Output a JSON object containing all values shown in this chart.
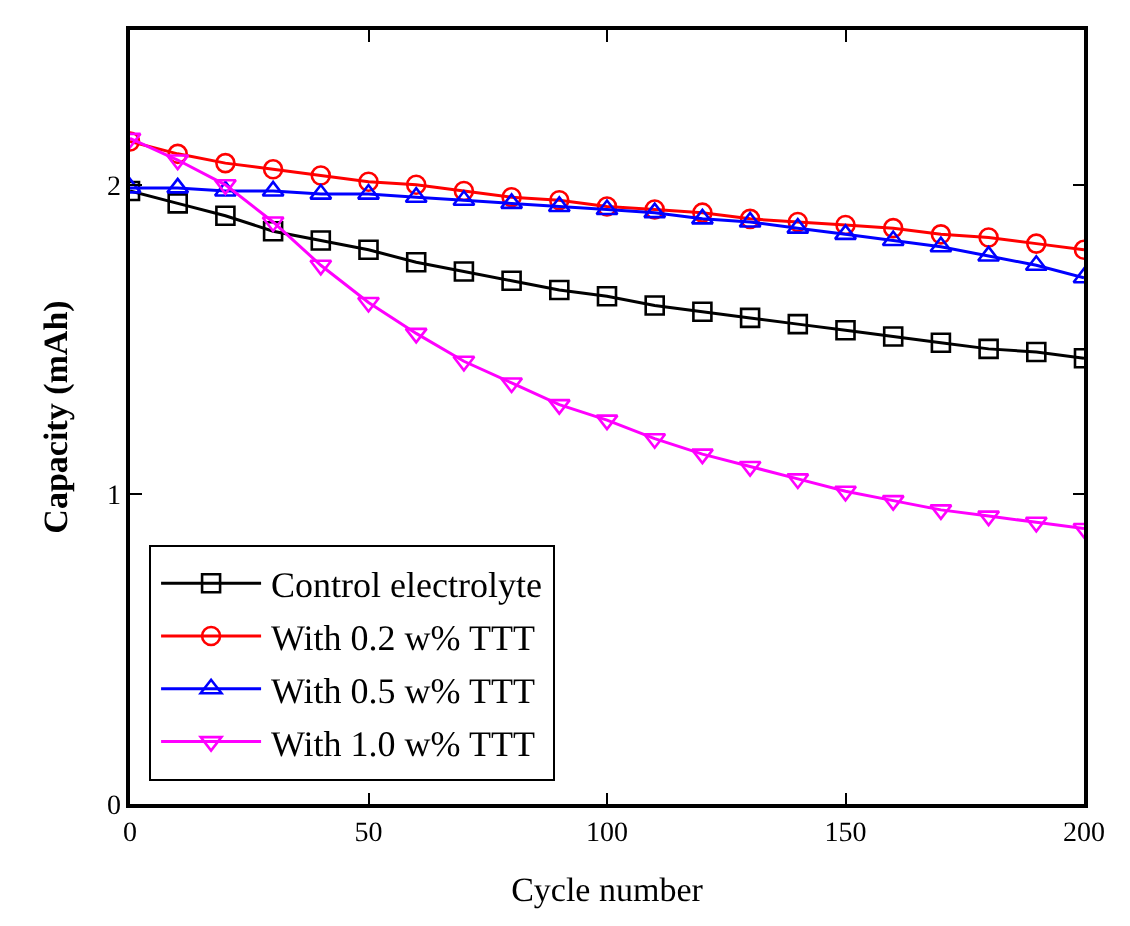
{
  "chart_data": {
    "type": "line",
    "xlabel": "Cycle number",
    "ylabel": "Capacity (mAh)",
    "x": [
      0,
      10,
      20,
      30,
      40,
      50,
      60,
      70,
      80,
      90,
      100,
      110,
      120,
      130,
      140,
      150,
      160,
      170,
      180,
      190,
      200
    ],
    "xlim": [
      0,
      200
    ],
    "xticks": [
      0,
      50,
      100,
      150,
      200
    ],
    "ylim": [
      0,
      2.5
    ],
    "yticks": [
      0,
      1,
      2
    ],
    "legend": "bottom left",
    "line_style": "solid",
    "series": [
      {
        "name": "Control electrolyte",
        "color": "#000000",
        "marker": "square",
        "values": [
          1.98,
          1.94,
          1.9,
          1.85,
          1.82,
          1.79,
          1.75,
          1.72,
          1.69,
          1.66,
          1.64,
          1.61,
          1.59,
          1.57,
          1.55,
          1.53,
          1.51,
          1.49,
          1.47,
          1.46,
          1.44
        ]
      },
      {
        "name": "With 0.2 w% TTT",
        "color": "#ff0000",
        "marker": "circle",
        "values": [
          2.14,
          2.1,
          2.07,
          2.05,
          2.03,
          2.01,
          2.0,
          1.98,
          1.96,
          1.95,
          1.93,
          1.92,
          1.91,
          1.89,
          1.88,
          1.87,
          1.86,
          1.84,
          1.83,
          1.81,
          1.79
        ]
      },
      {
        "name": "With 0.5 w% TTT",
        "color": "#0000ff",
        "marker": "triangle",
        "values": [
          1.99,
          1.99,
          1.98,
          1.98,
          1.97,
          1.97,
          1.96,
          1.95,
          1.94,
          1.93,
          1.92,
          1.91,
          1.89,
          1.88,
          1.86,
          1.84,
          1.82,
          1.8,
          1.77,
          1.74,
          1.7
        ]
      },
      {
        "name": "With 1.0 w% TTT",
        "color": "#ff00ff",
        "marker": "triangle-down",
        "values": [
          2.15,
          2.08,
          2.0,
          1.88,
          1.74,
          1.62,
          1.52,
          1.43,
          1.36,
          1.29,
          1.24,
          1.18,
          1.13,
          1.09,
          1.05,
          1.01,
          0.98,
          0.95,
          0.93,
          0.91,
          0.89
        ]
      }
    ]
  }
}
